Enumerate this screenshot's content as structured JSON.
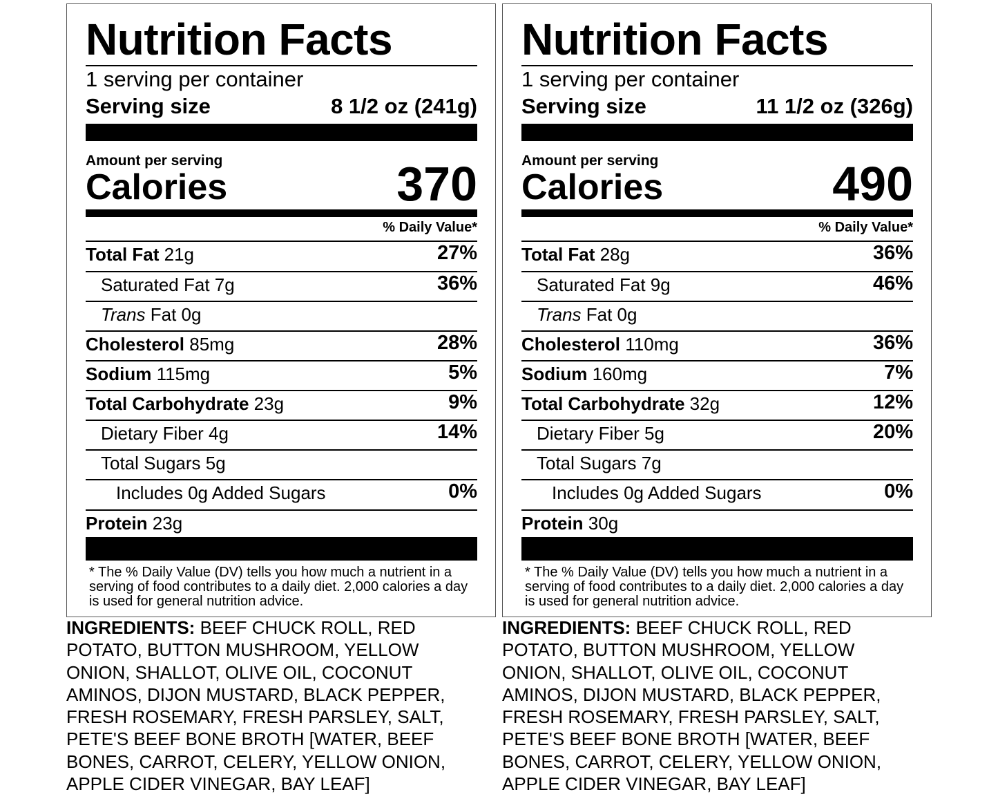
{
  "labels": [
    {
      "title": "Nutrition Facts",
      "servings_per_container": "1 serving per container",
      "serving_size_label": "Serving size",
      "serving_size_value": "8 1/2 oz (241g)",
      "amount_per_serving": "Amount per serving",
      "calories_label": "Calories",
      "calories_value": "370",
      "dv_header": "% Daily Value*",
      "nutrients": [
        {
          "name": "Total Fat",
          "amount": " 21g",
          "dv": "27%"
        },
        {
          "name": "Saturated Fat 7g",
          "dv": "36%"
        },
        {
          "name_italic": "Trans",
          "name": " Fat 0g",
          "dv": ""
        },
        {
          "name": "Cholesterol",
          "amount": " 85mg",
          "dv": "28%"
        },
        {
          "name": "Sodium",
          "amount": " 115mg",
          "dv": "5%"
        },
        {
          "name": "Total Carbohydrate",
          "amount": " 23g",
          "dv": "9%"
        },
        {
          "name": "Dietary Fiber 4g",
          "dv": "14%"
        },
        {
          "name": "Total Sugars 5g",
          "dv": ""
        },
        {
          "name": "Includes 0g Added Sugars",
          "dv": "0%"
        },
        {
          "name": "Protein",
          "amount": " 23g"
        }
      ],
      "footnote": "* The % Daily Value (DV) tells you how much a nutrient in a serving of food contributes to a daily diet. 2,000 calories a day is used for general nutrition advice.",
      "ingredients_label": "INGREDIENTS:",
      "ingredients_text": " BEEF CHUCK ROLL, RED\nPOTATO, BUTTON MUSHROOM, YELLOW\nONION, SHALLOT, OLIVE OIL, COCONUT\nAMINOS, DIJON MUSTARD, BLACK PEPPER,\nFRESH ROSEMARY, FRESH PARSLEY, SALT,\nPETE'S BEEF BONE BROTH [WATER, BEEF\nBONES, CARROT, CELERY, YELLOW ONION,\nAPPLE CIDER VINEGAR, BAY LEAF]"
    },
    {
      "title": "Nutrition Facts",
      "servings_per_container": "1 serving per container",
      "serving_size_label": "Serving size",
      "serving_size_value": "11 1/2 oz (326g)",
      "amount_per_serving": "Amount per serving",
      "calories_label": "Calories",
      "calories_value": "490",
      "dv_header": "% Daily Value*",
      "nutrients": [
        {
          "name": "Total Fat",
          "amount": " 28g",
          "dv": "36%"
        },
        {
          "name": "Saturated Fat 9g",
          "dv": "46%"
        },
        {
          "name_italic": "Trans",
          "name": " Fat 0g",
          "dv": ""
        },
        {
          "name": "Cholesterol",
          "amount": " 110mg",
          "dv": "36%"
        },
        {
          "name": "Sodium",
          "amount": " 160mg",
          "dv": "7%"
        },
        {
          "name": "Total Carbohydrate",
          "amount": " 32g",
          "dv": "12%"
        },
        {
          "name": "Dietary Fiber 5g",
          "dv": "20%"
        },
        {
          "name": "Total Sugars 7g",
          "dv": ""
        },
        {
          "name": "Includes 0g Added Sugars",
          "dv": "0%"
        },
        {
          "name": "Protein",
          "amount": " 30g"
        }
      ],
      "footnote": "* The % Daily Value (DV) tells you how much a nutrient in a serving of food contributes to a daily diet. 2,000 calories a day is used for general nutrition advice.",
      "ingredients_label": "INGREDIENTS:",
      "ingredients_text": " BEEF CHUCK ROLL, RED\nPOTATO, BUTTON MUSHROOM, YELLOW\nONION, SHALLOT, OLIVE OIL, COCONUT\nAMINOS, DIJON MUSTARD, BLACK PEPPER,\nFRESH ROSEMARY, FRESH PARSLEY, SALT,\nPETE'S BEEF BONE BROTH [WATER, BEEF\nBONES, CARROT, CELERY, YELLOW ONION,\nAPPLE CIDER VINEGAR, BAY LEAF]"
    }
  ]
}
